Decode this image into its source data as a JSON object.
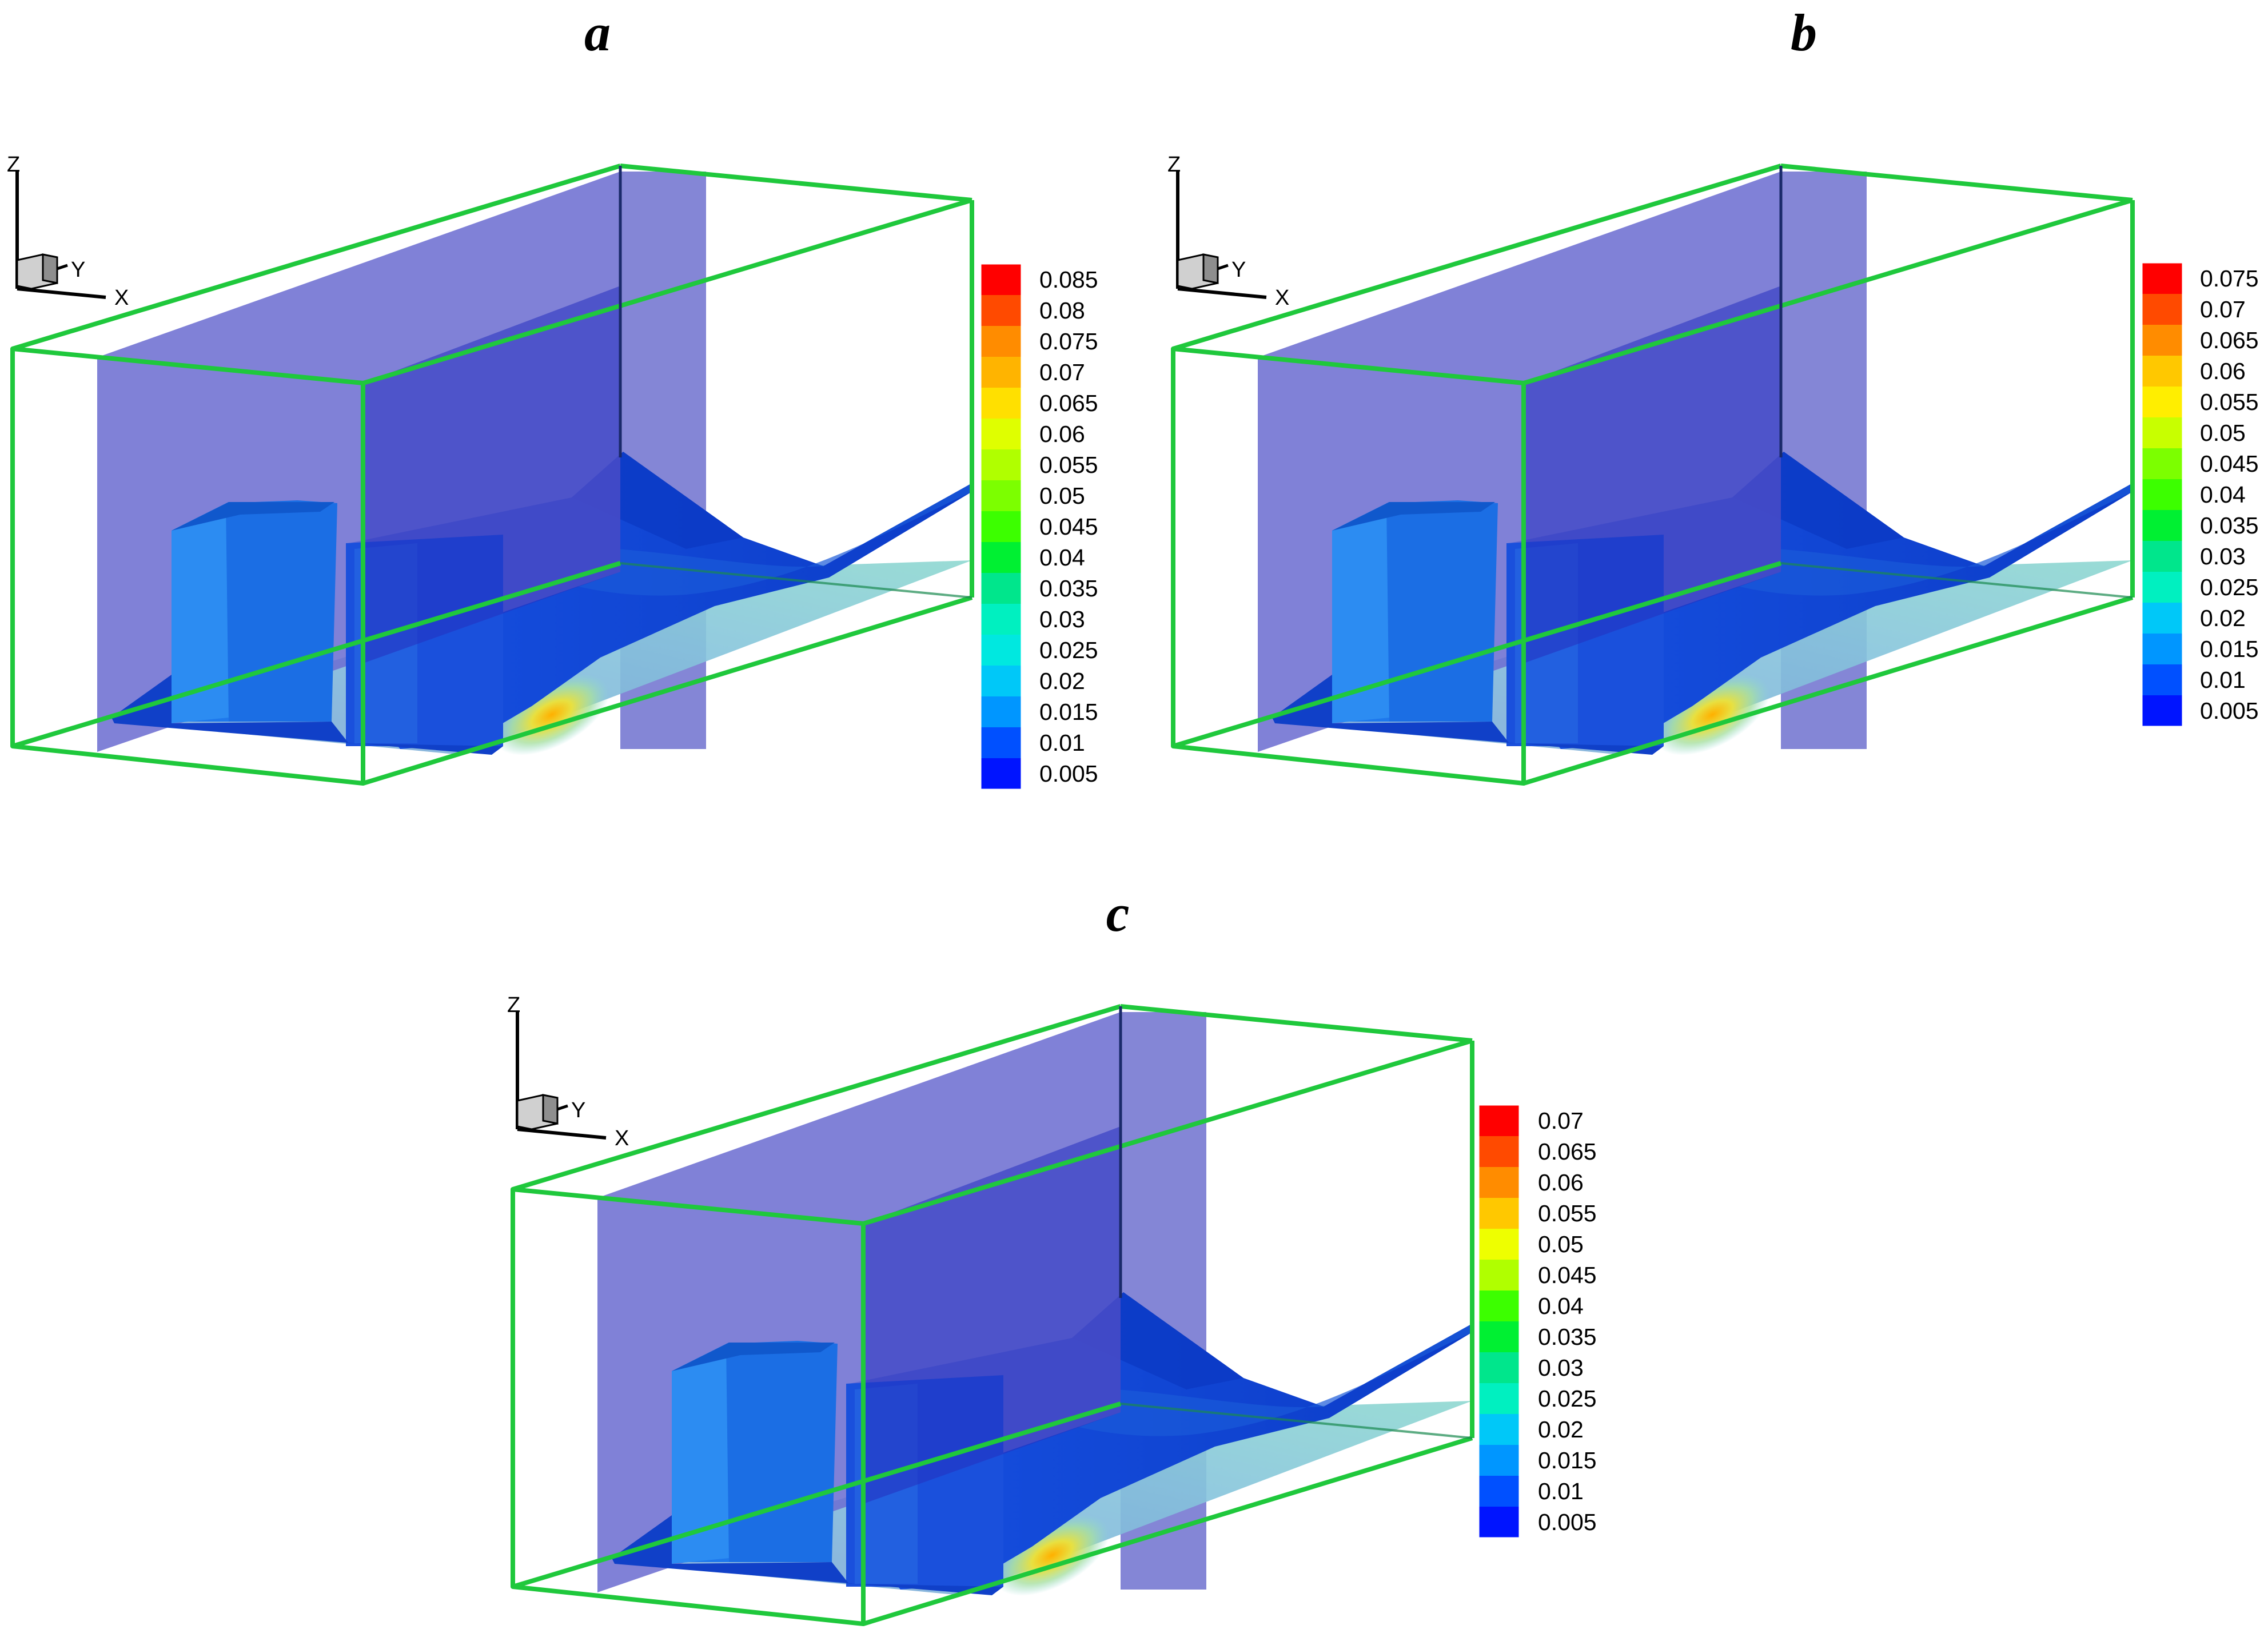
{
  "figure": {
    "panels": [
      {
        "id": "a",
        "label": "a",
        "axes": {
          "z": "Z",
          "y": "Y",
          "x": "X"
        },
        "legend": {
          "levels": [
            "0.085",
            "0.08",
            "0.075",
            "0.07",
            "0.065",
            "0.06",
            "0.055",
            "0.05",
            "0.045",
            "0.04",
            "0.035",
            "0.03",
            "0.025",
            "0.02",
            "0.015",
            "0.01",
            "0.005"
          ],
          "colors": [
            "#ff0000",
            "#ff4a00",
            "#ff8c00",
            "#ffb400",
            "#ffe000",
            "#dfff00",
            "#b0ff00",
            "#7cff00",
            "#3cff00",
            "#00f032",
            "#00e68c",
            "#00f0c0",
            "#00e8e0",
            "#00c8f8",
            "#0096ff",
            "#0050ff",
            "#0014ff"
          ]
        }
      },
      {
        "id": "b",
        "label": "b",
        "axes": {
          "z": "Z",
          "y": "Y",
          "x": "X"
        },
        "legend": {
          "levels": [
            "0.075",
            "0.07",
            "0.065",
            "0.06",
            "0.055",
            "0.05",
            "0.045",
            "0.04",
            "0.035",
            "0.03",
            "0.025",
            "0.02",
            "0.015",
            "0.01",
            "0.005"
          ],
          "colors": [
            "#ff0000",
            "#ff4a00",
            "#ff8c00",
            "#ffc800",
            "#ffee00",
            "#c8ff00",
            "#7cff00",
            "#3cff00",
            "#00f032",
            "#00e68c",
            "#00f0c0",
            "#00c8f8",
            "#0096ff",
            "#0050ff",
            "#0014ff"
          ]
        }
      },
      {
        "id": "c",
        "label": "c",
        "axes": {
          "z": "Z",
          "y": "Y",
          "x": "X"
        },
        "legend": {
          "levels": [
            "0.07",
            "0.065",
            "0.06",
            "0.055",
            "0.05",
            "0.045",
            "0.04",
            "0.035",
            "0.03",
            "0.025",
            "0.02",
            "0.015",
            "0.01",
            "0.005"
          ],
          "colors": [
            "#ff0000",
            "#ff4a00",
            "#ff8c00",
            "#ffc800",
            "#eeff00",
            "#b0ff00",
            "#3cff00",
            "#00f032",
            "#00e68c",
            "#00f0c0",
            "#00c8f8",
            "#0096ff",
            "#0050ff",
            "#0014ff"
          ]
        }
      }
    ]
  }
}
